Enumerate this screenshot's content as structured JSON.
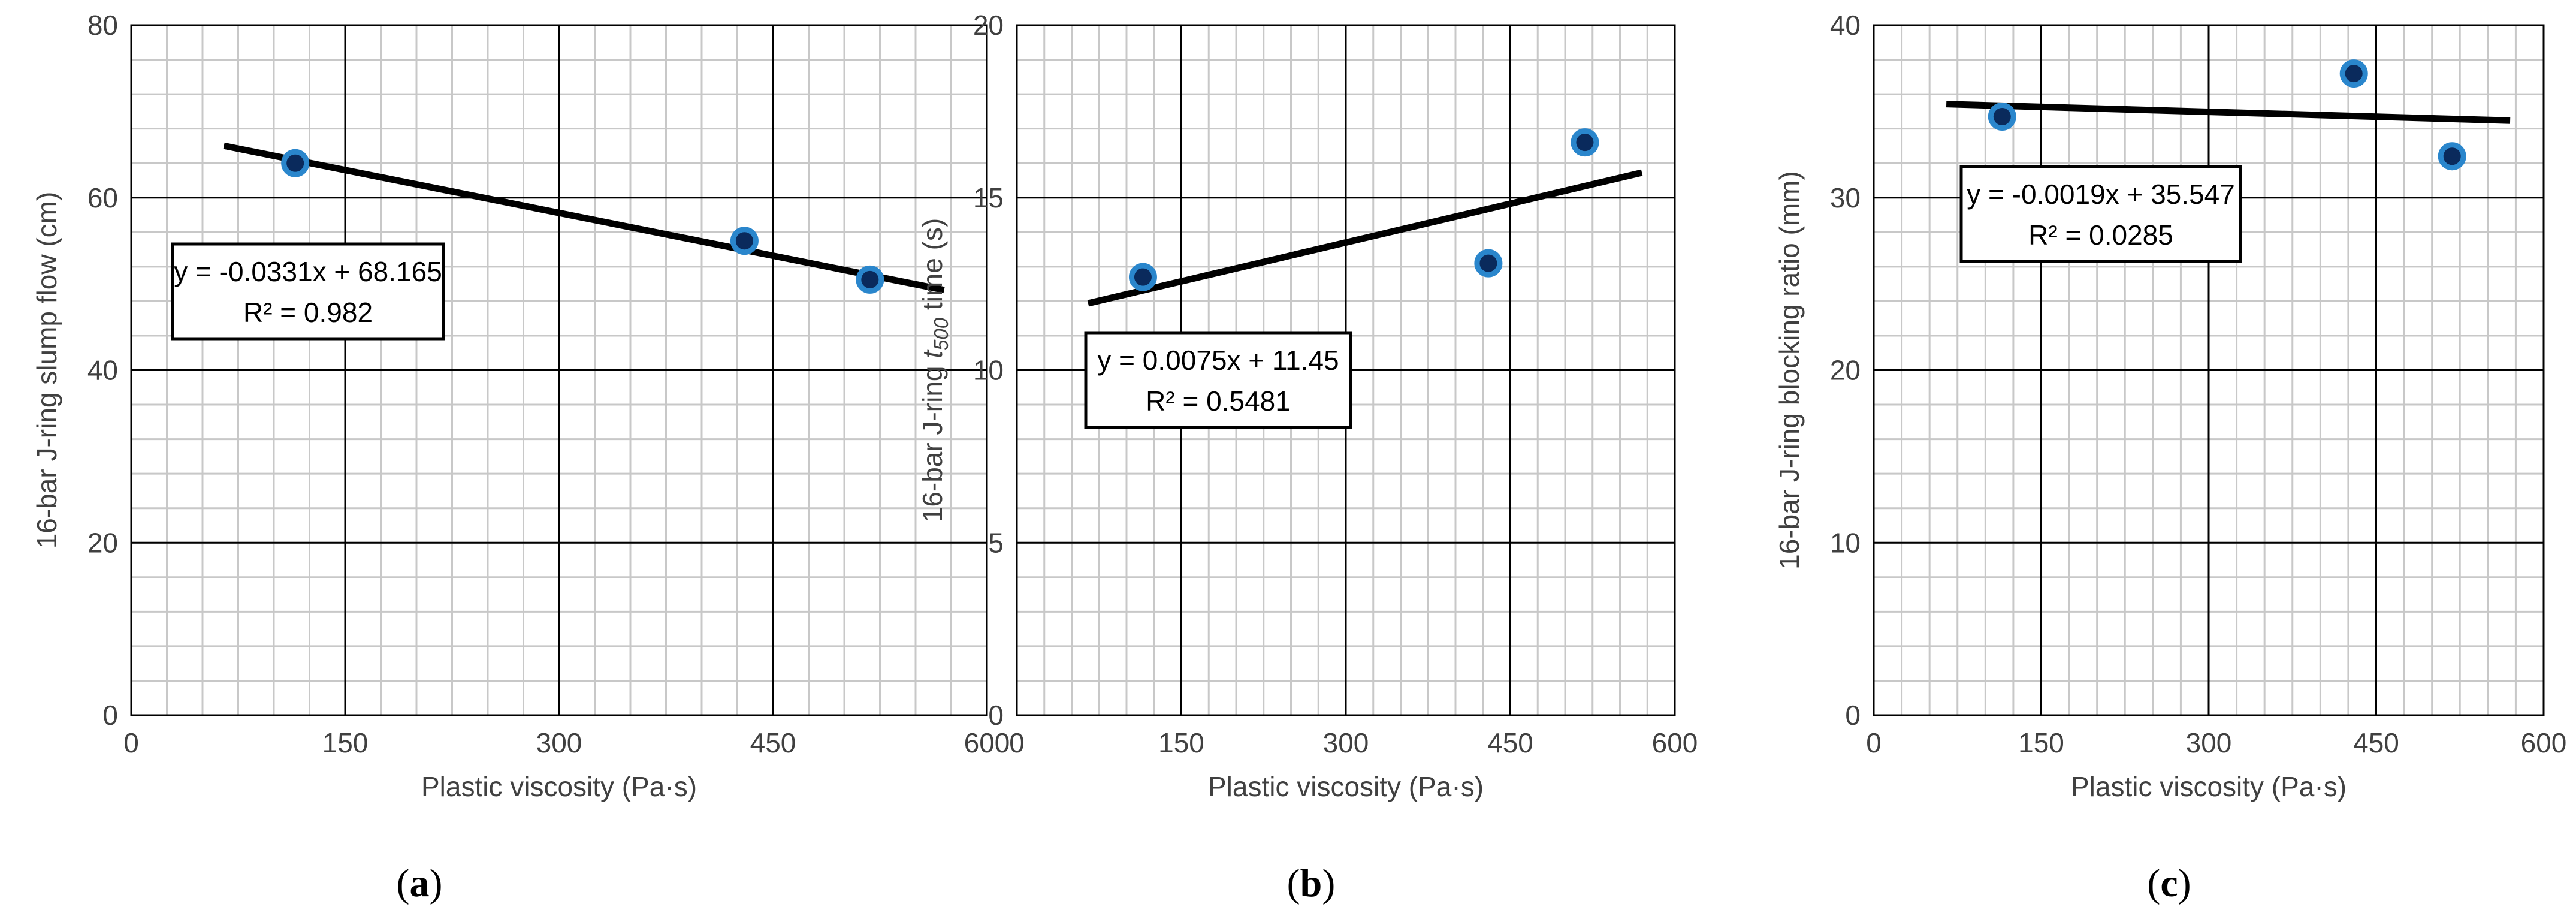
{
  "chart_data": [
    {
      "type": "scatter",
      "panel_letter": "a",
      "xlabel": "Plastic viscosity (Pa·s)",
      "ylabel_parts": {
        "pre": "16-bar J-ring slump flow (cm)",
        "italic": "",
        "sub": "",
        "post": ""
      },
      "xlim": [
        0,
        600
      ],
      "ylim": [
        0,
        80
      ],
      "x_ticks": [
        0,
        150,
        300,
        450,
        600
      ],
      "y_ticks": [
        0,
        20,
        40,
        60,
        80
      ],
      "x_minor_step": 25,
      "y_minor_step": 4,
      "points": [
        {
          "x": 115,
          "y": 64.0
        },
        {
          "x": 430,
          "y": 55.0
        },
        {
          "x": 518,
          "y": 50.5
        }
      ],
      "trendline": {
        "slope": -0.0331,
        "intercept": 68.165,
        "x_range": [
          65,
          570
        ]
      },
      "equation": "y = -0.0331x + 68.165",
      "r_squared": "R² = 0.982"
    },
    {
      "type": "scatter",
      "panel_letter": "b",
      "xlabel": "Plastic viscosity (Pa·s)",
      "ylabel_parts": {
        "pre": "16-bar J-ring ",
        "italic": "t",
        "sub": "500",
        "post": " time (s)"
      },
      "xlim": [
        0,
        600
      ],
      "ylim": [
        0,
        20
      ],
      "x_ticks": [
        0,
        150,
        300,
        450,
        600
      ],
      "y_ticks": [
        0,
        5,
        10,
        15,
        20
      ],
      "x_minor_step": 25,
      "y_minor_step": 1,
      "points": [
        {
          "x": 115,
          "y": 12.7
        },
        {
          "x": 430,
          "y": 13.1
        },
        {
          "x": 518,
          "y": 16.6
        }
      ],
      "trendline": {
        "slope": 0.0075,
        "intercept": 11.45,
        "x_range": [
          65,
          570
        ]
      },
      "equation": "y = 0.0075x + 11.45",
      "r_squared": "R² = 0.5481"
    },
    {
      "type": "scatter",
      "panel_letter": "c",
      "xlabel": "Plastic viscosity (Pa·s)",
      "ylabel_parts": {
        "pre": "16-bar J-ring blocking ratio (mm)",
        "italic": "",
        "sub": "",
        "post": ""
      },
      "xlim": [
        0,
        600
      ],
      "ylim": [
        0,
        40
      ],
      "x_ticks": [
        0,
        150,
        300,
        450,
        600
      ],
      "y_ticks": [
        0,
        10,
        20,
        30,
        40
      ],
      "x_minor_step": 25,
      "y_minor_step": 2,
      "points": [
        {
          "x": 115,
          "y": 34.7
        },
        {
          "x": 430,
          "y": 37.2
        },
        {
          "x": 518,
          "y": 32.4
        }
      ],
      "trendline": {
        "slope": -0.0019,
        "intercept": 35.547,
        "x_range": [
          65,
          570
        ]
      },
      "equation": "y = -0.0019x + 35.547",
      "r_squared": "R² = 0.0285"
    }
  ],
  "colors": {
    "marker_fill": "#0a2a5c",
    "marker_ring": "#2a86cc",
    "trendline": "#000000",
    "major_grid": "#000000",
    "minor_grid": "#c8c8c8"
  }
}
